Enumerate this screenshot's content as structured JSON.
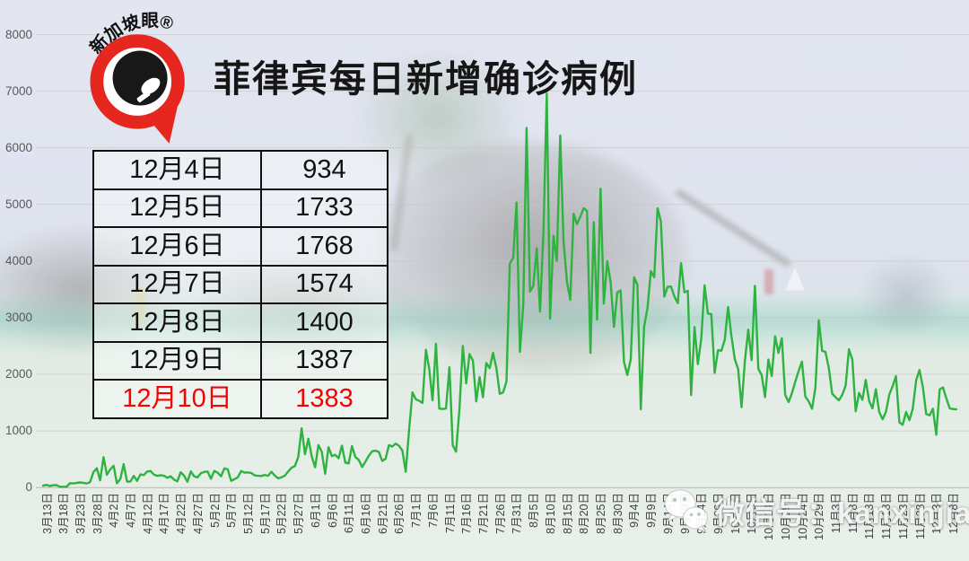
{
  "title": "菲律宾每日新增确诊病例",
  "logo": {
    "brand": "新加坡眼®"
  },
  "watermark": {
    "icon": "wechat-icon",
    "text": "微信号：kanxinjiapo"
  },
  "table": {
    "rows": [
      {
        "date": "12月4日",
        "value": "934",
        "highlight": false
      },
      {
        "date": "12月5日",
        "value": "1733",
        "highlight": false
      },
      {
        "date": "12月6日",
        "value": "1768",
        "highlight": false
      },
      {
        "date": "12月7日",
        "value": "1574",
        "highlight": false
      },
      {
        "date": "12月8日",
        "value": "1400",
        "highlight": false
      },
      {
        "date": "12月9日",
        "value": "1387",
        "highlight": false
      },
      {
        "date": "12月10日",
        "value": "1383",
        "highlight": true
      }
    ],
    "highlight_color": "#fa0000"
  },
  "chart_data": {
    "type": "line",
    "title": "菲律宾每日新增确诊病例",
    "series_name": "每日新增确诊病例",
    "line_color": "#2fb340",
    "grid": true,
    "legend": "none",
    "ylim": [
      0,
      8000
    ],
    "y_ticks": [
      0,
      1000,
      2000,
      3000,
      4000,
      5000,
      6000,
      7000,
      8000
    ],
    "x_start": "3月13日",
    "x_end": "12月10日",
    "x_tick_every_days": 5,
    "x_tick_labels": [
      "3月13日",
      "3月18日",
      "3月23日",
      "3月28日",
      "4月2日",
      "4月7日",
      "4月12日",
      "4月17日",
      "4月22日",
      "4月27日",
      "5月2日",
      "5月7日",
      "5月12日",
      "5月17日",
      "5月22日",
      "5月27日",
      "6月1日",
      "6月6日",
      "6月11日",
      "6月16日",
      "6月21日",
      "6月26日",
      "7月1日",
      "7月6日",
      "7月11日",
      "7月16日",
      "7月21日",
      "7月26日",
      "7月31日",
      "8月5日",
      "8月10日",
      "8月15日",
      "8月20日",
      "8月25日",
      "8月30日",
      "9月4日",
      "9月9日",
      "9月14日",
      "9月19日",
      "9月24日",
      "9月29日",
      "10月4日",
      "10月9日",
      "10月14日",
      "10月19日",
      "10月24日",
      "10月29日",
      "11月3日",
      "11月8日",
      "11月13日",
      "11月18日",
      "11月23日",
      "11月28日",
      "12月3日",
      "12月8日"
    ],
    "values": [
      34,
      47,
      29,
      42,
      45,
      15,
      15,
      13,
      77,
      73,
      82,
      90,
      84,
      71,
      96,
      272,
      343,
      128,
      538,
      227,
      322,
      385,
      76,
      152,
      414,
      104,
      106,
      206,
      119,
      233,
      220,
      284,
      291,
      230,
      207,
      218,
      209,
      172,
      200,
      140,
      111,
      271,
      211,
      102,
      285,
      198,
      181,
      254,
      276,
      284,
      156,
      295,
      262,
      199,
      339,
      321,
      120,
      147,
      184,
      292,
      264,
      268,
      258,
      215,
      208,
      205,
      224,
      208,
      279,
      213,
      163,
      180,
      211,
      284,
      350,
      380,
      539,
      1046,
      590,
      862,
      552,
      359,
      751,
      634,
      244,
      714,
      555,
      579,
      518,
      740,
      443,
      426,
      733,
      539,
      490,
      364,
      457,
      561,
      640,
      652,
      630,
      470,
      510,
      750,
      724,
      776,
      738,
      653,
      279,
      1006,
      1680,
      1560,
      1531,
      1494,
      2434,
      2099,
      1540,
      2539,
      1395,
      1387,
      1397,
      2124,
      748,
      634,
      1392,
      2498,
      1841,
      2357,
      2241,
      1521,
      1951,
      1594,
      2200,
      2110,
      2378,
      2110,
      1657,
      1678,
      1874,
      3954,
      4063,
      5032,
      2396,
      3226,
      6352,
      3462,
      3561,
      4226,
      3109,
      4508,
      6958,
      2987,
      4444,
      4002,
      6216,
      4351,
      3637,
      3314,
      4836,
      4650,
      4786,
      4933,
      4884,
      2378,
      4686,
      2965,
      5277,
      3249,
      3999,
      3637,
      2839,
      3446,
      3483,
      2218,
      1987,
      2263,
      3714,
      3582,
      1383,
      2839,
      3176,
      3821,
      3714,
      4935,
      4699,
      3372,
      3544,
      3550,
      3375,
      3257,
      3962,
      3447,
      3475,
      1635,
      2833,
      2180,
      2630,
      3573,
      3073,
      3063,
      2025,
      2426,
      2415,
      2611,
      3190,
      2674,
      2265,
      2093,
      1418,
      2232,
      2790,
      2249,
      3564,
      2099,
      1990,
      1597,
      2261,
      1971,
      2673,
      2379,
      2638,
      1640,
      1509,
      1664,
      1871,
      2057,
      2223,
      1607,
      1524,
      1392,
      1761,
      2954,
      2415,
      2396,
      2110,
      1660,
      1594,
      1541,
      1639,
      1803,
      2442,
      2257,
      1347,
      1672,
      1550,
      1902,
      1530,
      1398,
      1738,
      1337,
      1206,
      1337,
      1639,
      1791,
      1968,
      1153,
      1108,
      1337,
      1190,
      1392,
      1893,
      2076,
      1773,
      1298,
      1275,
      1392,
      934,
      1733,
      1768,
      1574,
      1400,
      1387,
      1383
    ]
  }
}
